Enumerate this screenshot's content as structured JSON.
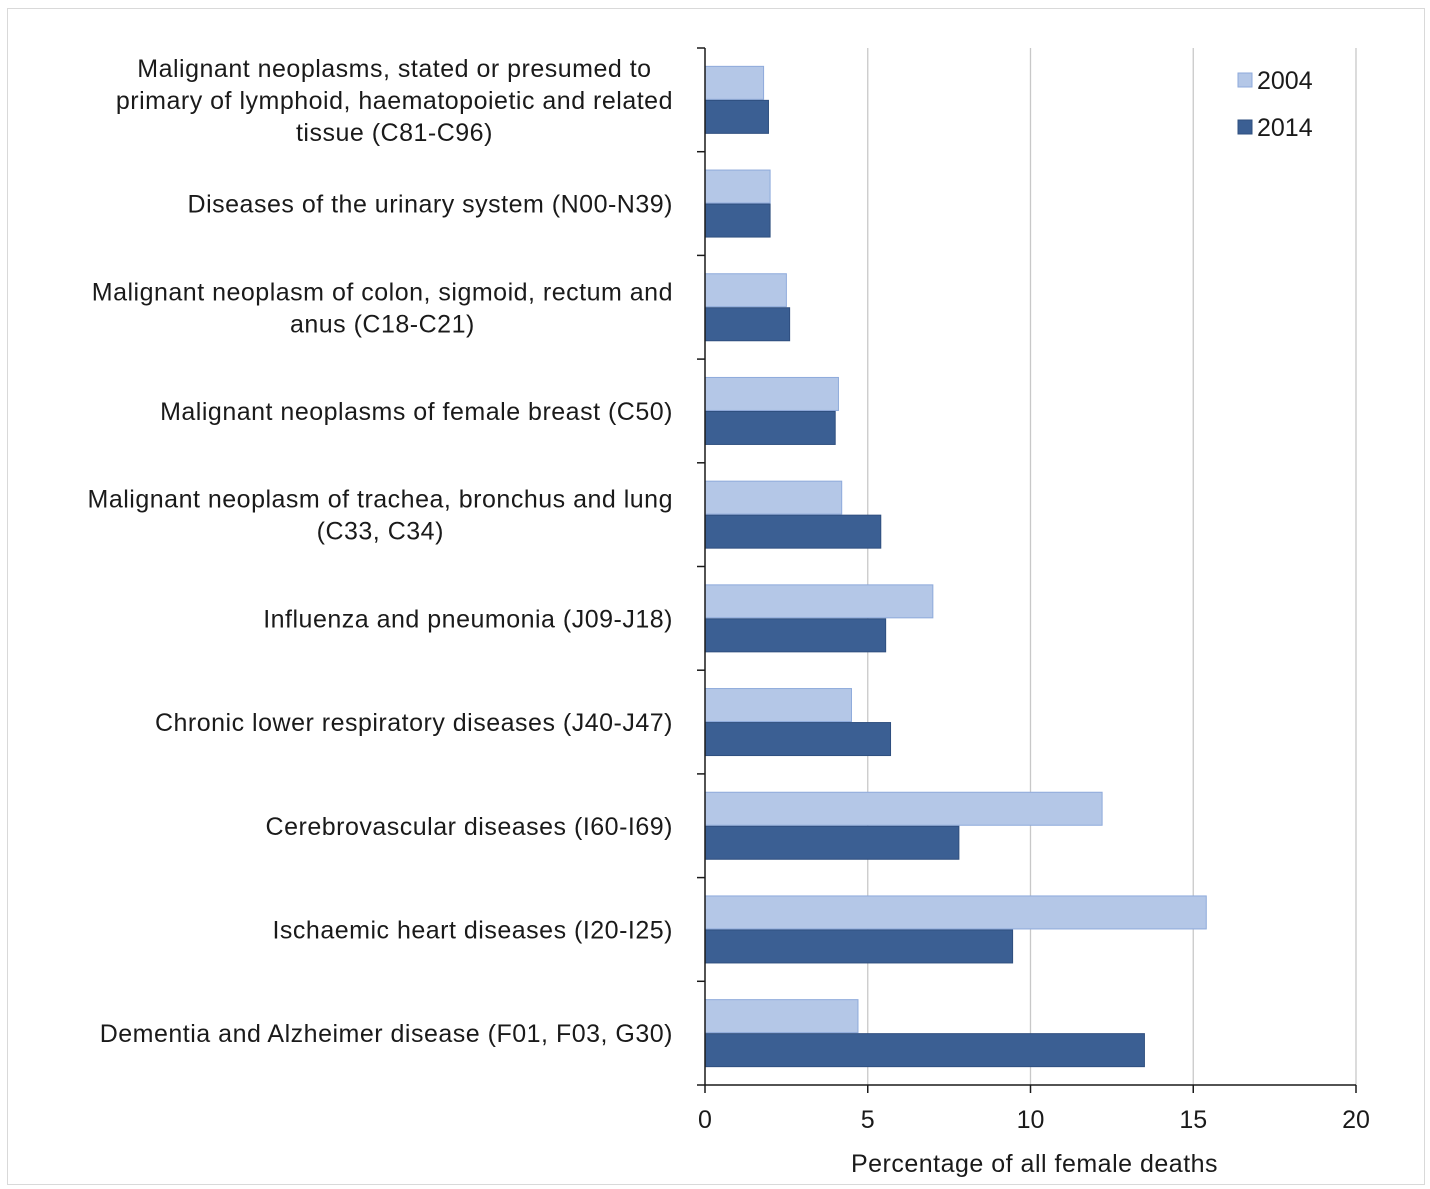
{
  "chart_data": {
    "type": "bar",
    "orientation": "horizontal",
    "categories": [
      [
        "Malignant neoplasms, stated or presumed to",
        "primary of lymphoid, haematopoietic and related",
        "tissue (C81-C96)"
      ],
      [
        "Diseases of the urinary system (N00-N39)"
      ],
      [
        "Malignant neoplasm of colon, sigmoid, rectum and",
        "anus (C18-C21)"
      ],
      [
        "Malignant neoplasms of female breast (C50)"
      ],
      [
        "Malignant neoplasm of trachea, bronchus and lung",
        "(C33, C34)"
      ],
      [
        "Influenza and pneumonia (J09-J18)"
      ],
      [
        "Chronic lower respiratory diseases (J40-J47)"
      ],
      [
        "Cerebrovascular diseases (I60-I69)"
      ],
      [
        "Ischaemic heart diseases (I20-I25)"
      ],
      [
        "Dementia and Alzheimer disease (F01, F03, G30)"
      ]
    ],
    "series": [
      {
        "name": "2004",
        "color": "#b4c7e7",
        "stroke": "#8eaadb",
        "values": [
          1.8,
          2.0,
          2.5,
          4.1,
          4.2,
          7.0,
          4.5,
          12.2,
          15.4,
          4.7
        ]
      },
      {
        "name": "2014",
        "color": "#3b5f93",
        "stroke": "#2f4f7f",
        "values": [
          1.95,
          2.0,
          2.6,
          4.0,
          5.4,
          5.55,
          5.7,
          7.8,
          9.45,
          13.5
        ]
      }
    ],
    "xlabel": "Percentage of all female deaths",
    "ylabel": "",
    "xlim": [
      0,
      20
    ],
    "xticks": [
      "0",
      "5",
      "10",
      "15",
      "20"
    ],
    "grid": true,
    "legend_position": "top-right"
  }
}
